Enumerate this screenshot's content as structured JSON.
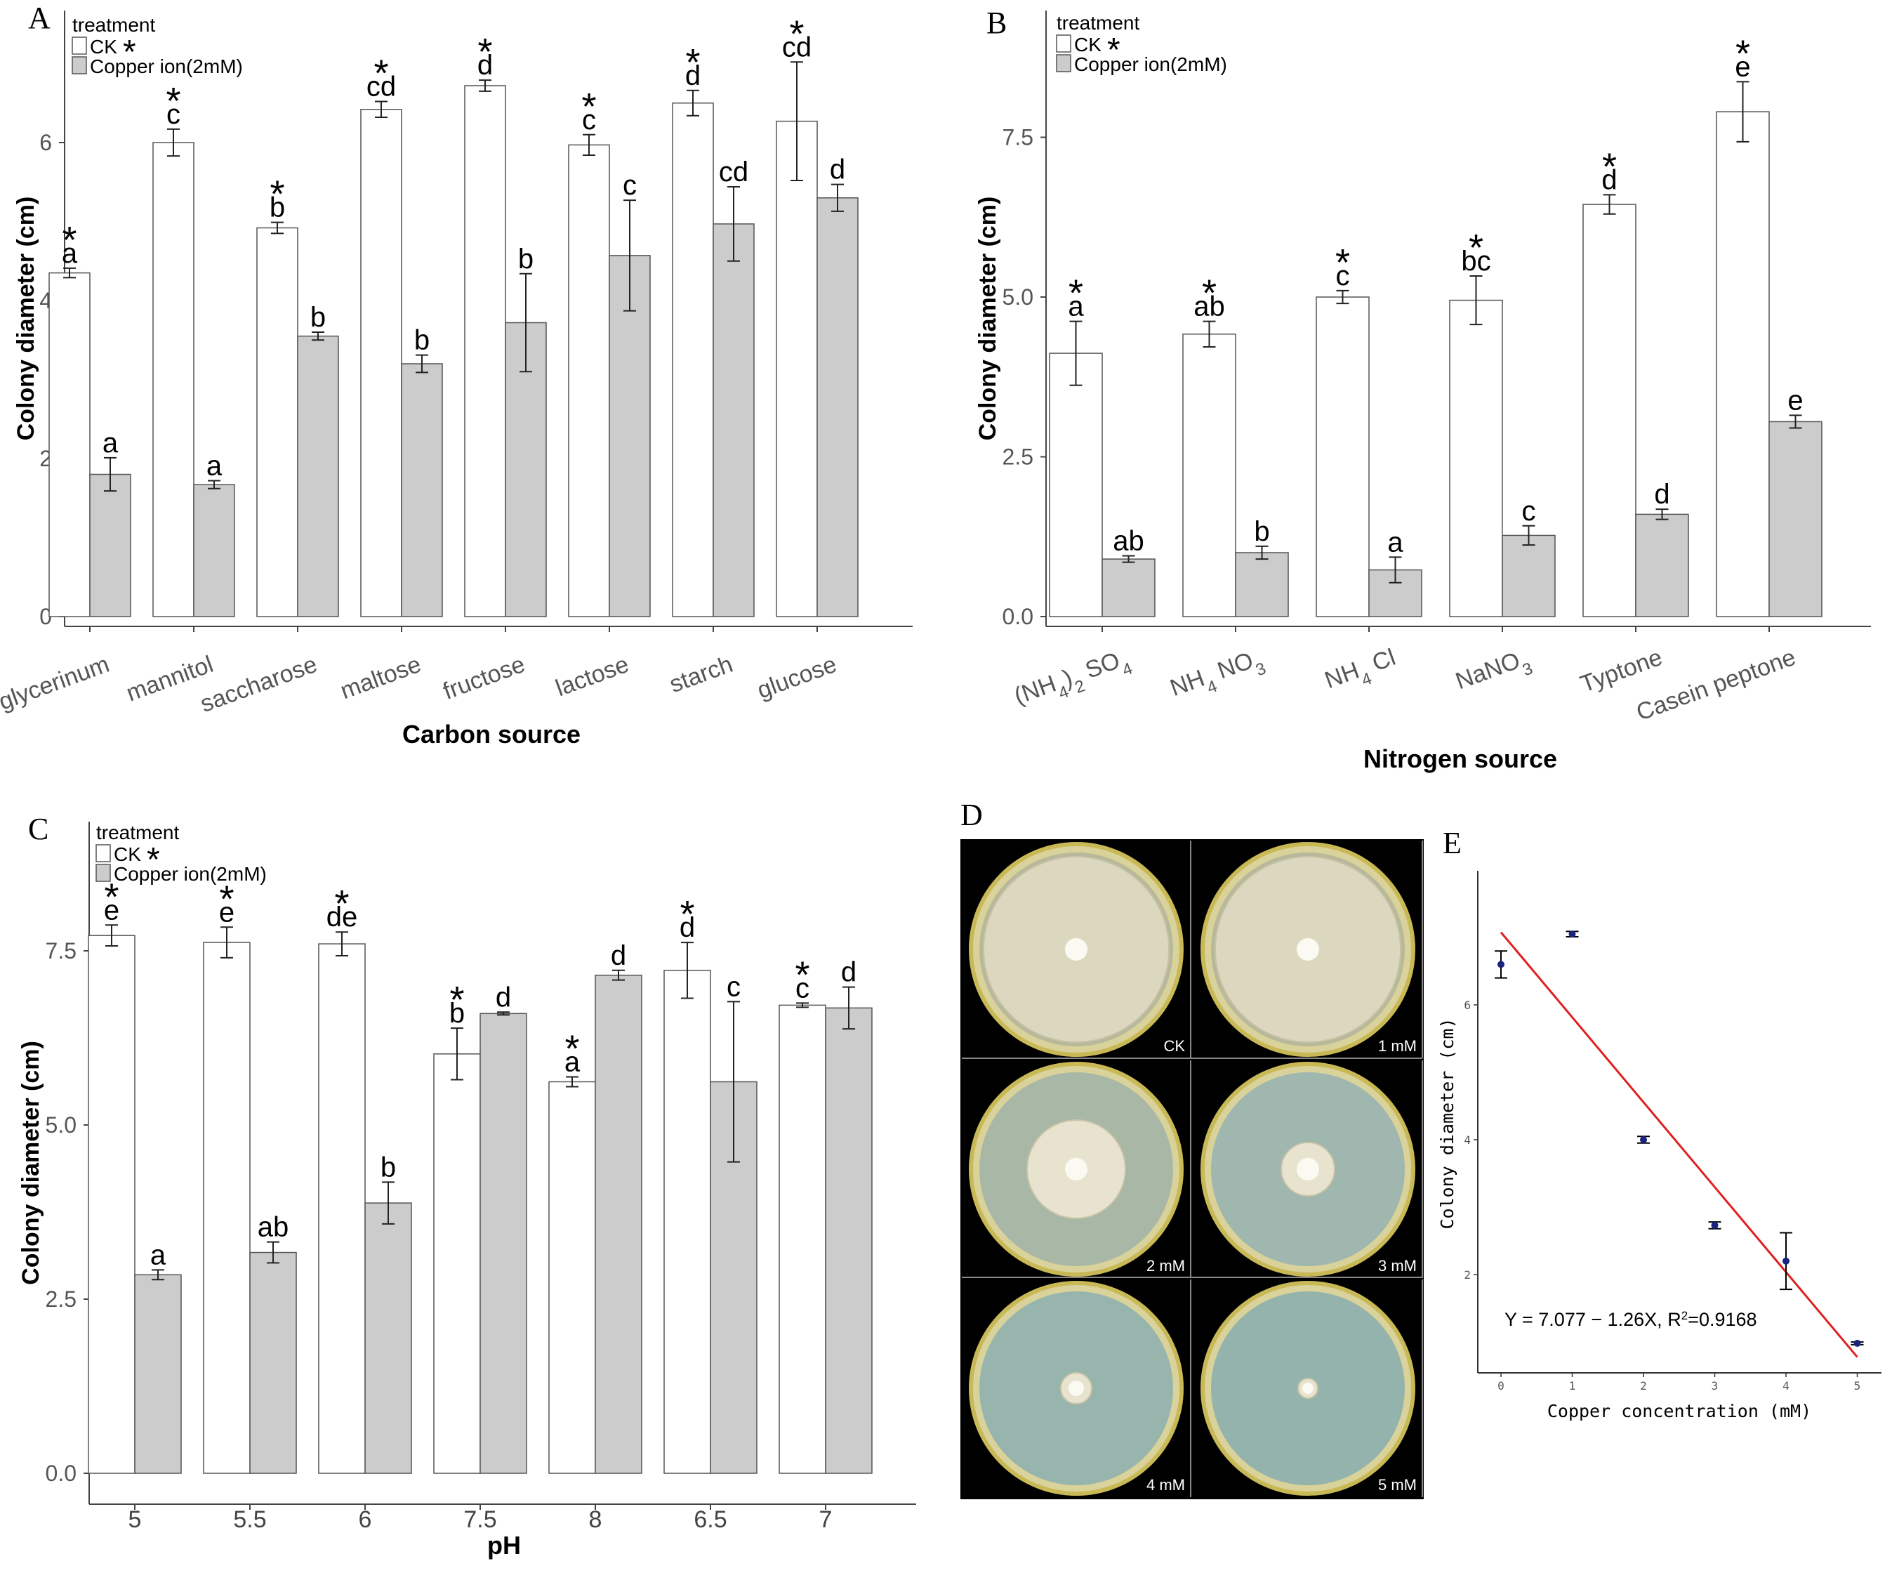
{
  "chart_data": [
    {
      "panel": "A",
      "type": "bar",
      "legend_title": "treatment",
      "legend": [
        "CK",
        "Copper ion(2mM)"
      ],
      "legend_star": "*",
      "xlabel": "Carbon source",
      "ylabel": "Colony diameter (cm)",
      "ylim": [
        0,
        7.4
      ],
      "yticks": [
        0,
        2,
        4,
        6
      ],
      "ytick_labels": [
        "0",
        "2",
        "4",
        "6"
      ],
      "categories": [
        "glycerinum",
        "mannitol",
        "saccharose",
        "maltose",
        "fructose",
        "lactose",
        "starch",
        "glucose"
      ],
      "series": [
        {
          "name": "CK",
          "color": "#ffffff",
          "values": [
            4.35,
            6.0,
            4.92,
            6.42,
            6.72,
            5.97,
            6.5,
            6.27
          ],
          "errors": [
            0.06,
            0.17,
            0.07,
            0.1,
            0.07,
            0.13,
            0.16,
            0.75
          ],
          "letters": [
            "a",
            "c",
            "b",
            "cd",
            "d",
            "c",
            "d",
            "cd"
          ],
          "stars": [
            "*",
            "*",
            "*",
            "*",
            "*",
            "*",
            "*",
            "*"
          ]
        },
        {
          "name": "Copper ion(2mM)",
          "color": "#cccccc",
          "values": [
            1.8,
            1.67,
            3.55,
            3.2,
            3.72,
            4.57,
            4.97,
            5.3
          ],
          "errors": [
            0.21,
            0.05,
            0.05,
            0.11,
            0.62,
            0.7,
            0.47,
            0.17
          ],
          "letters": [
            "a",
            "a",
            "b",
            "b",
            "b",
            "c",
            "cd",
            "d"
          ],
          "stars": [
            "",
            "",
            "",
            "",
            "",
            "",
            "",
            ""
          ]
        }
      ]
    },
    {
      "panel": "B",
      "type": "bar",
      "legend_title": "treatment",
      "legend": [
        "CK",
        "Copper ion(2mM)"
      ],
      "legend_star": "*",
      "xlabel": "Nitrogen source",
      "ylabel": "Colony diameter (cm)",
      "ylim": [
        0,
        9.1
      ],
      "yticks": [
        0,
        2.5,
        5,
        7.5
      ],
      "ytick_labels": [
        "0.0",
        "2.5",
        "5.0",
        "7.5"
      ],
      "categories": [
        "(NH4)2 SO4",
        "NH4 NO3",
        "NH4 Cl",
        "NaNO3",
        "Typtone",
        "Casein peptone"
      ],
      "series": [
        {
          "name": "CK",
          "color": "#ffffff",
          "values": [
            4.12,
            4.42,
            5.0,
            4.95,
            6.45,
            7.9
          ],
          "errors": [
            0.5,
            0.2,
            0.1,
            0.38,
            0.15,
            0.47
          ],
          "letters": [
            "a",
            "ab",
            "c",
            "bc",
            "d",
            "e"
          ],
          "stars": [
            "*",
            "*",
            "*",
            "*",
            "*",
            "*"
          ]
        },
        {
          "name": "Copper ion(2mM)",
          "color": "#cccccc",
          "values": [
            0.9,
            1.0,
            0.73,
            1.27,
            1.6,
            3.05
          ],
          "errors": [
            0.05,
            0.1,
            0.2,
            0.15,
            0.08,
            0.1
          ],
          "letters": [
            "ab",
            "b",
            "a",
            "c",
            "d",
            "e"
          ],
          "stars": [
            "",
            "",
            "",
            "",
            "",
            ""
          ]
        }
      ]
    },
    {
      "panel": "C",
      "type": "bar",
      "legend_title": "treatment",
      "legend": [
        "CK",
        "Copper ion(2mM)"
      ],
      "legend_star": "*",
      "xlabel": "pH",
      "ylabel": "Colony diameter (cm)",
      "ylim": [
        0,
        9.2
      ],
      "yticks": [
        0,
        2.5,
        5,
        7.5
      ],
      "ytick_labels": [
        "0.0",
        "2.5",
        "5.0",
        "7.5"
      ],
      "categories": [
        "5",
        "5.5",
        "6",
        "7.5",
        "8",
        "6.5",
        "7"
      ],
      "series": [
        {
          "name": "CK",
          "color": "#ffffff",
          "values": [
            7.72,
            7.62,
            7.6,
            6.02,
            5.62,
            7.22,
            6.72
          ],
          "errors": [
            0.15,
            0.22,
            0.17,
            0.37,
            0.07,
            0.4,
            0.03
          ],
          "letters": [
            "e",
            "e",
            "de",
            "b",
            "a",
            "d",
            "c"
          ],
          "stars": [
            "*",
            "*",
            "*",
            "*",
            "*",
            "*",
            "*"
          ]
        },
        {
          "name": "Copper ion(2mM)",
          "color": "#cccccc",
          "values": [
            2.85,
            3.17,
            3.88,
            6.6,
            7.15,
            5.62,
            6.68
          ],
          "errors": [
            0.07,
            0.15,
            0.3,
            0.02,
            0.07,
            1.15,
            0.3
          ],
          "letters": [
            "a",
            "ab",
            "b",
            "d",
            "d",
            "c",
            "d"
          ],
          "stars": [
            "",
            "",
            "",
            "",
            "",
            "",
            ""
          ]
        }
      ]
    },
    {
      "panel": "E",
      "type": "scatter",
      "xlabel": "Copper concentration (mM)",
      "ylabel": "Colony diameter (cm)",
      "x": [
        0,
        1,
        2,
        3,
        4,
        5
      ],
      "y": [
        6.6,
        7.05,
        4.0,
        2.73,
        2.2,
        0.98
      ],
      "errors": [
        0.2,
        0.04,
        0.05,
        0.05,
        0.42,
        0.02
      ],
      "xlim": [
        -0.2,
        5.2
      ],
      "ylim": [
        0.4,
        7.4
      ],
      "xticks": [
        "0",
        "1",
        "2",
        "3",
        "4",
        "5"
      ],
      "yticks": [
        "2",
        "4",
        "6"
      ],
      "fit": {
        "intercept": 7.077,
        "slope": -1.26,
        "color": "#e02020"
      },
      "equation": "Y = 7.077 − 1.26X, R",
      "r2_sup": "2",
      "r2_value": "=0.9168"
    }
  ],
  "panel_letters": {
    "A": "A",
    "B": "B",
    "C": "C",
    "D": "D",
    "E": "E"
  },
  "photo_panel": {
    "labels": [
      "CK",
      "1  mM",
      "2  mM",
      "3  mM",
      "4  mM",
      "5  mM"
    ]
  },
  "colors": {
    "bar_ck": "#ffffff",
    "bar_cu": "#cccccc",
    "axis": "#333333",
    "fit": "#e02020",
    "point": "#1a237e"
  }
}
